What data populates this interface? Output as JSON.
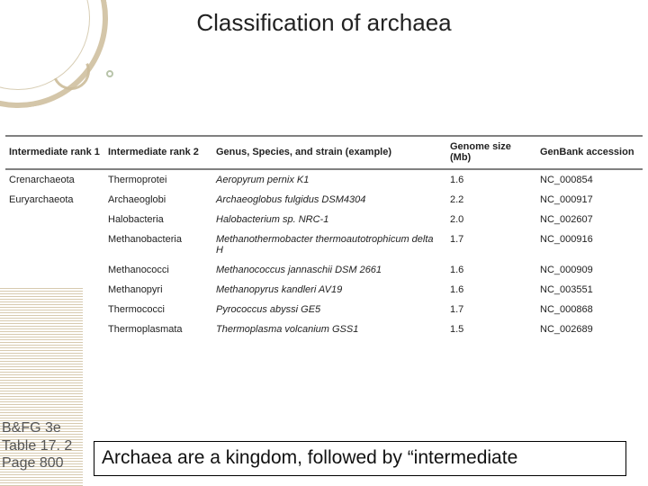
{
  "title": "Classification of archaea",
  "table": {
    "columns": [
      "Intermediate rank 1",
      "Intermediate rank 2",
      "Genus, Species, and strain (example)",
      "Genome size (Mb)",
      "GenBank accession"
    ],
    "rows": [
      {
        "r1": "Crenarchaeota",
        "r2": "Thermoprotei",
        "sp": "Aeropyrum pernix K1",
        "sz": "1.6",
        "ac": "NC_000854"
      },
      {
        "r1": "Euryarchaeota",
        "r2": "Archaeoglobi",
        "sp": "Archaeoglobus fulgidus DSM4304",
        "sz": "2.2",
        "ac": "NC_000917"
      },
      {
        "r1": "",
        "r2": "Halobacteria",
        "sp": "Halobacterium sp. NRC-1",
        "sz": "2.0",
        "ac": "NC_002607"
      },
      {
        "r1": "",
        "r2": "Methanobacteria",
        "sp": "Methanothermobacter thermoautotrophicum delta H",
        "sz": "1.7",
        "ac": "NC_000916"
      },
      {
        "r1": "",
        "r2": "Methanococci",
        "sp": "Methanococcus jannaschii DSM 2661",
        "sz": "1.6",
        "ac": "NC_000909"
      },
      {
        "r1": "",
        "r2": "Methanopyri",
        "sp": "Methanopyrus kandleri AV19",
        "sz": "1.6",
        "ac": "NC_003551"
      },
      {
        "r1": "",
        "r2": "Thermococci",
        "sp": "Pyrococcus abyssi GE5",
        "sz": "1.7",
        "ac": "NC_000868"
      },
      {
        "r1": "",
        "r2": "Thermoplasmata",
        "sp": "Thermoplasma volcanium GSS1",
        "sz": "1.5",
        "ac": "NC_002689"
      }
    ]
  },
  "ref": {
    "line1": "B&FG 3e",
    "line2": "Table 17. 2",
    "line3": "Page 800"
  },
  "caption": "Archaea are a kingdom, followed by “intermediate",
  "colors": {
    "title": "#222222",
    "accent": "#cdbd9b",
    "border": "#808080"
  }
}
